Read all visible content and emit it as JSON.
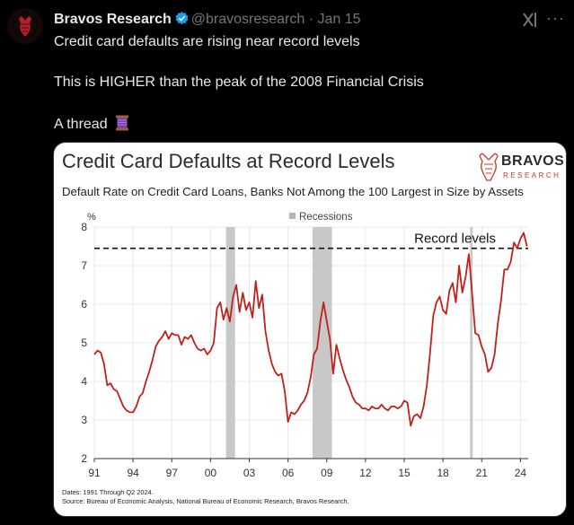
{
  "post": {
    "author_name": "Bravos Research",
    "handle": "@bravosresearch",
    "separator": "·",
    "date": "Jan 15",
    "line1": "Credit card defaults are rising near record levels",
    "line2": "This is HIGHER than the peak of the 2008 Financial Crisis",
    "line3": "A thread",
    "icons": {
      "verified": "verified-badge-icon",
      "grok": "grok-icon",
      "more": "more-icon",
      "thread": "spool-of-thread-icon"
    },
    "colors": {
      "verified": "#1d9bf0",
      "text": "#e7e9ea",
      "muted": "#71767b",
      "background": "#000000"
    }
  },
  "card": {
    "title": "Credit Card Defaults at Record Levels",
    "subtitle": "Default Rate on Credit Card Loans, Banks Not Among the 100 Largest in Size by Assets",
    "brand": {
      "name": "BRAVOS",
      "sub": "RESEARCH"
    },
    "footnote_dates": "Dates: 1991 Through Q2 2024.",
    "footnote_source": "Source: Bureau of Economic Analysis, National Bureau of Economic Research, Bravos Research."
  },
  "chart_data": {
    "type": "line",
    "xlabel": "",
    "ylabel": "%",
    "xlim": [
      1991,
      2024.6
    ],
    "ylim": [
      2,
      8
    ],
    "x_ticks": [
      1991,
      1994,
      1997,
      2000,
      2003,
      2006,
      2009,
      2012,
      2015,
      2018,
      2021,
      2024
    ],
    "x_tick_labels": [
      "91",
      "94",
      "97",
      "00",
      "03",
      "06",
      "09",
      "12",
      "15",
      "18",
      "21",
      "24"
    ],
    "y_ticks": [
      2,
      3,
      4,
      5,
      6,
      7,
      8
    ],
    "y_tick_labels": [
      "2",
      "3",
      "4",
      "5",
      "6",
      "7",
      "8"
    ],
    "grid": true,
    "line_color": "#c0211a",
    "recessions_legend": "Recessions",
    "recessions": [
      [
        2001.2,
        2001.9
      ],
      [
        2007.9,
        2009.4
      ],
      [
        2020.1,
        2020.3
      ]
    ],
    "record_line": {
      "value": 7.45,
      "label": "Record levels"
    },
    "series": [
      {
        "x": [
          1991.0,
          1991.25,
          1991.5,
          1991.75,
          1992.0,
          1992.25,
          1992.5,
          1992.75,
          1993.0,
          1993.25,
          1993.5,
          1993.75,
          1994.0,
          1994.25,
          1994.5,
          1994.75,
          1995.0,
          1995.25,
          1995.5,
          1995.75,
          1996.0,
          1996.25,
          1996.5,
          1996.75,
          1997.0,
          1997.25,
          1997.5,
          1997.75,
          1998.0,
          1998.25,
          1998.5,
          1998.75,
          1999.0,
          1999.25,
          1999.5,
          1999.75,
          2000.0,
          2000.25,
          2000.5,
          2000.75,
          2001.0,
          2001.25,
          2001.5,
          2001.75,
          2002.0,
          2002.25,
          2002.5,
          2002.75,
          2003.0,
          2003.25,
          2003.5,
          2003.75,
          2004.0,
          2004.25,
          2004.5,
          2004.75,
          2005.0,
          2005.25,
          2005.5,
          2005.75,
          2006.0,
          2006.25,
          2006.5,
          2006.75,
          2007.0,
          2007.25,
          2007.5,
          2007.75,
          2008.0,
          2008.25,
          2008.5,
          2008.75,
          2009.0,
          2009.25,
          2009.5,
          2009.75,
          2010.0,
          2010.25,
          2010.5,
          2010.75,
          2011.0,
          2011.25,
          2011.5,
          2011.75,
          2012.0,
          2012.25,
          2012.5,
          2012.75,
          2013.0,
          2013.25,
          2013.5,
          2013.75,
          2014.0,
          2014.25,
          2014.5,
          2014.75,
          2015.0,
          2015.25,
          2015.5,
          2015.75,
          2016.0,
          2016.25,
          2016.5,
          2016.75,
          2017.0,
          2017.25,
          2017.5,
          2017.75,
          2018.0,
          2018.25,
          2018.5,
          2018.75,
          2019.0,
          2019.25,
          2019.5,
          2019.75,
          2020.0,
          2020.25,
          2020.5,
          2020.75,
          2021.0,
          2021.25,
          2021.5,
          2021.75,
          2022.0,
          2022.25,
          2022.5,
          2022.75,
          2023.0,
          2023.25,
          2023.5,
          2023.75,
          2024.0,
          2024.25,
          2024.5
        ],
        "values": [
          4.7,
          4.8,
          4.75,
          4.45,
          3.9,
          3.95,
          3.8,
          3.75,
          3.55,
          3.35,
          3.25,
          3.2,
          3.2,
          3.35,
          3.6,
          3.7,
          4.0,
          4.25,
          4.55,
          4.9,
          5.05,
          5.15,
          5.3,
          5.1,
          5.25,
          5.2,
          5.2,
          4.95,
          5.15,
          5.1,
          5.2,
          5.0,
          4.85,
          4.8,
          4.85,
          4.7,
          4.8,
          5.0,
          5.9,
          6.05,
          5.6,
          5.9,
          5.55,
          6.2,
          6.5,
          5.8,
          6.3,
          5.85,
          6.05,
          5.65,
          6.6,
          5.9,
          6.25,
          5.3,
          4.8,
          4.45,
          4.25,
          4.15,
          4.2,
          3.75,
          2.95,
          3.2,
          3.15,
          3.25,
          3.4,
          3.5,
          3.7,
          4.1,
          4.7,
          4.85,
          5.55,
          6.05,
          5.55,
          5.1,
          4.2,
          4.95,
          4.6,
          4.3,
          4.05,
          3.85,
          3.6,
          3.45,
          3.4,
          3.3,
          3.3,
          3.25,
          3.35,
          3.3,
          3.3,
          3.4,
          3.3,
          3.25,
          3.35,
          3.35,
          3.3,
          3.35,
          3.5,
          3.45,
          2.85,
          3.1,
          3.15,
          3.05,
          3.35,
          3.9,
          4.75,
          5.7,
          6.05,
          6.2,
          5.85,
          5.75,
          6.35,
          6.55,
          6.05,
          7.0,
          6.3,
          6.7,
          7.3,
          6.3,
          5.25,
          5.2,
          4.9,
          4.7,
          4.25,
          4.35,
          4.7,
          5.5,
          6.1,
          6.9,
          6.9,
          7.1,
          7.6,
          7.45,
          7.7,
          7.85,
          7.5
        ]
      }
    ]
  }
}
